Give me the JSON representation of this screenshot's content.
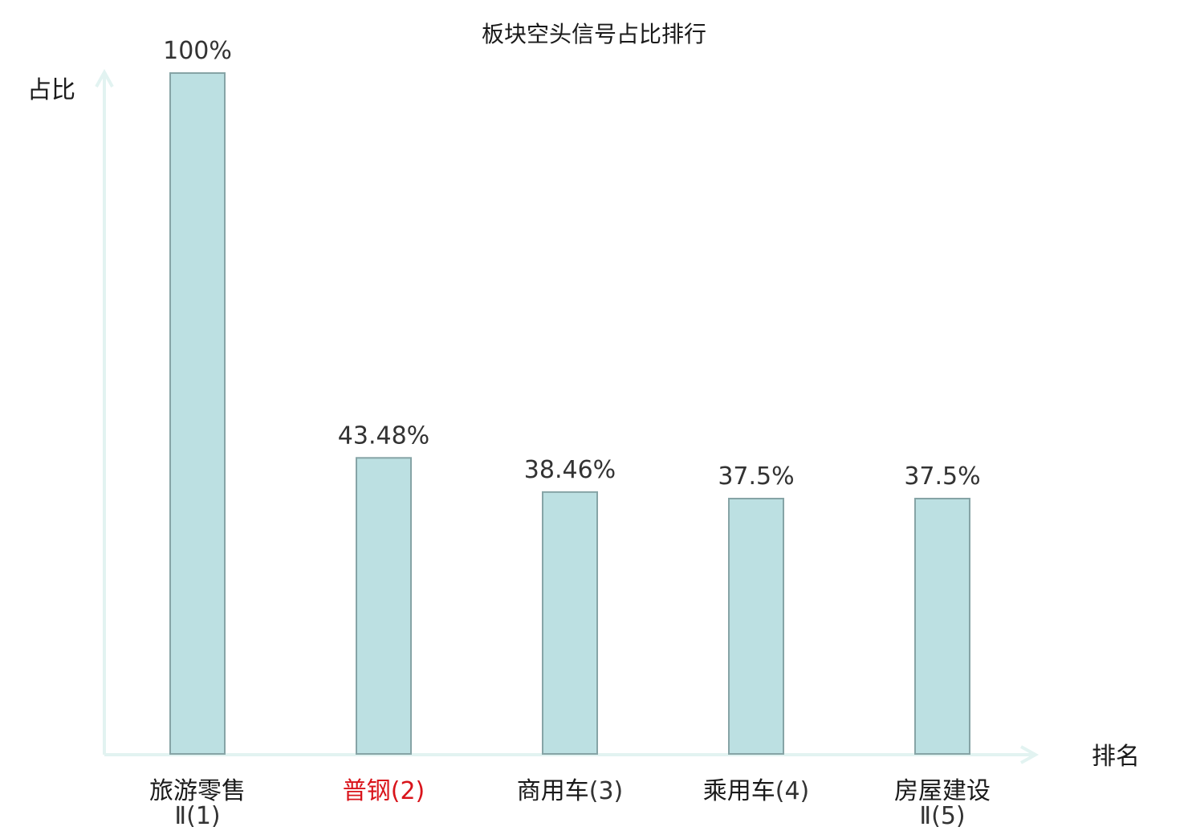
{
  "chart_data": {
    "type": "bar",
    "title": "板块空头信号占比排行",
    "xlabel": "排名",
    "ylabel": "占比",
    "ylim": [
      0,
      100
    ],
    "grid": false,
    "categories": [
      {
        "name": "旅游零售",
        "suffix": "Ⅱ(1)",
        "rank_text": ""
      },
      {
        "name": "普钢",
        "suffix": "",
        "rank_text": "(2)"
      },
      {
        "name": "商用车",
        "suffix": "",
        "rank_text": "(3)"
      },
      {
        "name": "乘用车",
        "suffix": "",
        "rank_text": "(4)"
      },
      {
        "name": "房屋建设",
        "suffix": "Ⅱ(5)",
        "rank_text": ""
      }
    ],
    "values": [
      100,
      43.48,
      38.46,
      37.5,
      37.5
    ],
    "value_labels": [
      "100%",
      "43.48%",
      "38.46%",
      "37.5%",
      "37.5%"
    ],
    "highlight_index": 1,
    "colors": {
      "bar_fill": "#bce0e2",
      "bar_stroke": "#86a4a6",
      "axis": "#e2f3f1",
      "highlight": "#d9141b",
      "label": "#1a1a1a",
      "rank": "#333333"
    }
  }
}
